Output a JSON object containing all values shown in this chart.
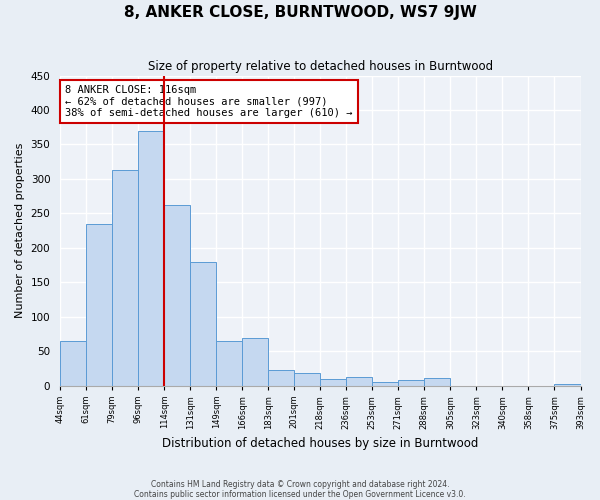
{
  "title": "8, ANKER CLOSE, BURNTWOOD, WS7 9JW",
  "subtitle": "Size of property relative to detached houses in Burntwood",
  "xlabel": "Distribution of detached houses by size in Burntwood",
  "ylabel": "Number of detached properties",
  "bar_values": [
    65,
    235,
    313,
    369,
    262,
    179,
    65,
    69,
    23,
    19,
    10,
    12,
    5,
    9,
    11,
    0,
    0,
    0,
    0,
    3
  ],
  "bin_labels": [
    "44sqm",
    "61sqm",
    "79sqm",
    "96sqm",
    "114sqm",
    "131sqm",
    "149sqm",
    "166sqm",
    "183sqm",
    "201sqm",
    "218sqm",
    "236sqm",
    "253sqm",
    "271sqm",
    "288sqm",
    "305sqm",
    "323sqm",
    "340sqm",
    "358sqm",
    "375sqm",
    "393sqm"
  ],
  "bar_color": "#c5d8f0",
  "bar_edge_color": "#5b9bd5",
  "vline_x": 4,
  "vline_color": "#cc0000",
  "annotation_title": "8 ANKER CLOSE: 116sqm",
  "annotation_line1": "← 62% of detached houses are smaller (997)",
  "annotation_line2": "38% of semi-detached houses are larger (610) →",
  "annotation_box_color": "#cc0000",
  "ylim": [
    0,
    450
  ],
  "yticks": [
    0,
    50,
    100,
    150,
    200,
    250,
    300,
    350,
    400,
    450
  ],
  "footer1": "Contains HM Land Registry data © Crown copyright and database right 2024.",
  "footer2": "Contains public sector information licensed under the Open Government Licence v3.0.",
  "background_color": "#e8eef5",
  "plot_bg_color": "#eef2f8"
}
